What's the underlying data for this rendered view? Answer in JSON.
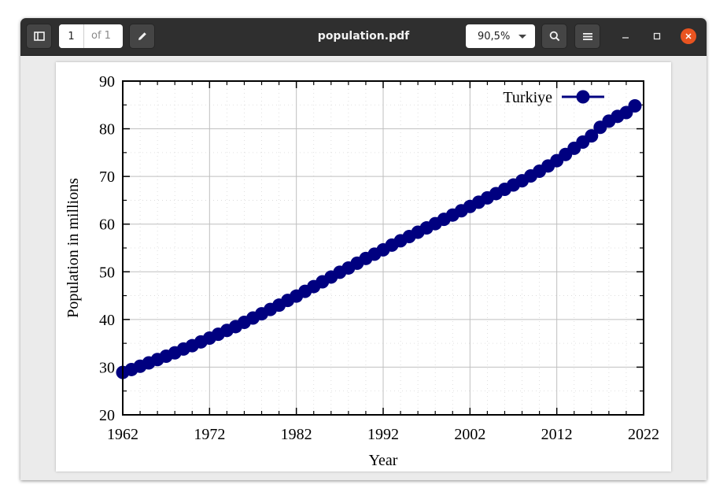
{
  "toolbar": {
    "page_current": "1",
    "page_total_label": "of 1",
    "title": "population.pdf",
    "zoom": "90,5%",
    "sidebar_icon": "sidebar-toggle-icon",
    "annotate_icon": "pencil-icon",
    "search_icon": "search-icon",
    "menu_icon": "hamburger-menu-icon",
    "minimize_icon": "minimize-icon",
    "maximize_icon": "maximize-icon",
    "close_icon": "close-icon",
    "close_color": "#e95420"
  },
  "chart_data": {
    "type": "line",
    "xlabel": "Year",
    "ylabel": "Population in millions",
    "xlim": [
      1962,
      2022
    ],
    "ylim": [
      20,
      90
    ],
    "xticks": [
      1962,
      1972,
      1982,
      1992,
      2002,
      2012,
      2022
    ],
    "yticks": [
      20,
      30,
      40,
      50,
      60,
      70,
      80,
      90
    ],
    "grid": true,
    "legend_position": "top-right",
    "series": [
      {
        "name": "Turkiye",
        "color": "#000080",
        "marker": "circle",
        "x": [
          1962,
          1963,
          1964,
          1965,
          1966,
          1967,
          1968,
          1969,
          1970,
          1971,
          1972,
          1973,
          1974,
          1975,
          1976,
          1977,
          1978,
          1979,
          1980,
          1981,
          1982,
          1983,
          1984,
          1985,
          1986,
          1987,
          1988,
          1989,
          1990,
          1991,
          1992,
          1993,
          1994,
          1995,
          1996,
          1997,
          1998,
          1999,
          2000,
          2001,
          2002,
          2003,
          2004,
          2005,
          2006,
          2007,
          2008,
          2009,
          2010,
          2011,
          2012,
          2013,
          2014,
          2015,
          2016,
          2017,
          2018,
          2019,
          2020,
          2021
        ],
        "values": [
          28.9,
          29.5,
          30.2,
          30.9,
          31.6,
          32.3,
          33.0,
          33.8,
          34.5,
          35.3,
          36.1,
          36.9,
          37.7,
          38.5,
          39.4,
          40.3,
          41.2,
          42.1,
          43.0,
          44.0,
          44.9,
          45.9,
          46.9,
          47.9,
          48.9,
          49.9,
          50.8,
          51.8,
          52.8,
          53.7,
          54.6,
          55.6,
          56.5,
          57.4,
          58.3,
          59.2,
          60.1,
          61.0,
          61.9,
          62.8,
          63.7,
          64.6,
          65.5,
          66.4,
          67.3,
          68.2,
          69.1,
          70.1,
          71.1,
          72.2,
          73.3,
          74.6,
          75.9,
          77.2,
          78.5,
          80.3,
          81.6,
          82.6,
          83.4,
          84.8
        ]
      }
    ]
  }
}
